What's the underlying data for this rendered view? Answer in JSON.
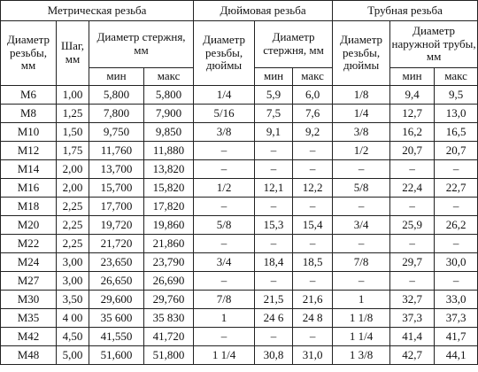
{
  "table": {
    "groups": [
      "Метрическая резьба",
      "Дюймовая резьба",
      "Трубная резьба"
    ],
    "columns": [
      "Диаметр резьбы, мм",
      "Шаг, мм",
      "Диаметр стержня, мм",
      "Диаметр резьбы, дюймы",
      "Диаметр стержня, мм",
      "Диаметр резьбы, дюймы",
      "Диаметр наружной трубы, мм"
    ],
    "subcolumns": [
      "мин",
      "макс",
      "мин",
      "макс",
      "мин",
      "макс"
    ],
    "rows": [
      [
        "M6",
        "1,00",
        "5,800",
        "5,800",
        "1/4",
        "5,9",
        "6,0",
        "1/8",
        "9,4",
        "9,5"
      ],
      [
        "M8",
        "1,25",
        "7,800",
        "7,900",
        "5/16",
        "7,5",
        "7,6",
        "1/4",
        "12,7",
        "13,0"
      ],
      [
        "M10",
        "1,50",
        "9,750",
        "9,850",
        "3/8",
        "9,1",
        "9,2",
        "3/8",
        "16,2",
        "16,5"
      ],
      [
        "M12",
        "1,75",
        "11,760",
        "11,880",
        "–",
        "–",
        "–",
        "1/2",
        "20,7",
        "20,7"
      ],
      [
        "M14",
        "2,00",
        "13,700",
        "13,820",
        "–",
        "–",
        "–",
        "–",
        "–",
        "–"
      ],
      [
        "M16",
        "2,00",
        "15,700",
        "15,820",
        "1/2",
        "12,1",
        "12,2",
        "5/8",
        "22,4",
        "22,7"
      ],
      [
        "M18",
        "2,25",
        "17,700",
        "17,820",
        "–",
        "–",
        "–",
        "–",
        "–",
        "–"
      ],
      [
        "M20",
        "2,25",
        "19,720",
        "19,860",
        "5/8",
        "15,3",
        "15,4",
        "3/4",
        "25,9",
        "26,2"
      ],
      [
        "M22",
        "2,25",
        "21,720",
        "21,860",
        "–",
        "–",
        "–",
        "–",
        "–",
        "–"
      ],
      [
        "M24",
        "3,00",
        "23,650",
        "23,790",
        "3/4",
        "18,4",
        "18,5",
        "7/8",
        "29,7",
        "30,0"
      ],
      [
        "M27",
        "3,00",
        "26,650",
        "26,690",
        "–",
        "–",
        "–",
        "–",
        "–",
        "–"
      ],
      [
        "M30",
        "3,50",
        "29,600",
        "29,760",
        "7/8",
        "21,5",
        "21,6",
        "1",
        "32,7",
        "33,0"
      ],
      [
        "M35",
        "4 00",
        "35 600",
        "35 830",
        "1",
        "24 6",
        "24 8",
        "1 1/8",
        "37,3",
        "37,3"
      ],
      [
        "M42",
        "4,50",
        "41,550",
        "41,720",
        "–",
        "–",
        "–",
        "1 1/4",
        "41,4",
        "41,7"
      ],
      [
        "M48",
        "5,00",
        "51,600",
        "51,800",
        "1 1/4",
        "30,8",
        "31,0",
        "1 3/8",
        "42,7",
        "44,1"
      ]
    ]
  }
}
